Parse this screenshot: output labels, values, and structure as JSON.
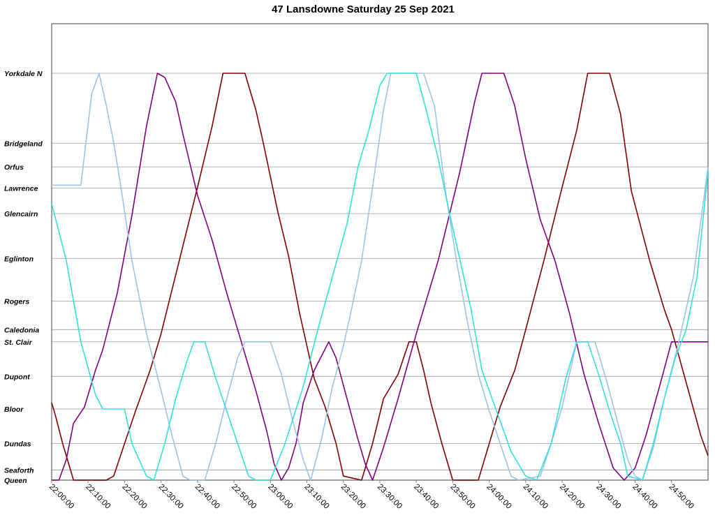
{
  "chart_data": {
    "type": "line",
    "title": "47 Lansdowne Saturday 25 Sep 2021",
    "x_ticks": [
      "22:00:00",
      "22:10:00",
      "22:20:00",
      "22:30:00",
      "22:40:00",
      "22:50:00",
      "23:00:00",
      "23:10:00",
      "23:20:00",
      "23:30:00",
      "23:40:00",
      "23:50:00",
      "24:00:00",
      "24:10:00",
      "24:20:00",
      "24:30:00",
      "24:40:00",
      "24:50:00"
    ],
    "xlim": [
      "22:00:00",
      "25:00:00"
    ],
    "stops": [
      {
        "name": "Yorkdale N",
        "dist": 0.0
      },
      {
        "name": "Bridgeland",
        "dist": 1.72
      },
      {
        "name": "Orfus",
        "dist": 2.3
      },
      {
        "name": "Lawrence",
        "dist": 2.82
      },
      {
        "name": "Glencairn",
        "dist": 3.45
      },
      {
        "name": "Eglinton",
        "dist": 4.55
      },
      {
        "name": "Rogers",
        "dist": 5.6
      },
      {
        "name": "Caledonia",
        "dist": 6.3
      },
      {
        "name": "St. Clair",
        "dist": 6.6
      },
      {
        "name": "Dupont",
        "dist": 7.45
      },
      {
        "name": "Bloor",
        "dist": 8.25
      },
      {
        "name": "Dundas",
        "dist": 9.1
      },
      {
        "name": "Seaforth",
        "dist": 9.75
      },
      {
        "name": "Queen",
        "dist": 10.0
      }
    ],
    "gridlines": true,
    "series": [
      {
        "color": "#800000",
        "points": [
          [
            "22:00:00",
            8.1
          ],
          [
            "22:01:00",
            8.4
          ],
          [
            "22:03:00",
            9.1
          ],
          [
            "22:06:00",
            10.0
          ],
          [
            "22:15:00",
            10.0
          ],
          [
            "22:17:00",
            9.9
          ],
          [
            "22:20:00",
            9.1
          ],
          [
            "22:23:00",
            8.3
          ],
          [
            "22:27:00",
            7.3
          ],
          [
            "22:30:00",
            6.4
          ],
          [
            "22:35:00",
            4.6
          ],
          [
            "22:40:00",
            2.8
          ],
          [
            "22:44:00",
            1.3
          ],
          [
            "22:47:00",
            0.0
          ],
          [
            "22:53:00",
            0.0
          ],
          [
            "22:56:00",
            0.9
          ],
          [
            "22:58:00",
            1.7
          ],
          [
            "23:02:00",
            3.4
          ],
          [
            "23:05:00",
            4.5
          ],
          [
            "23:08:00",
            5.9
          ],
          [
            "23:12:00",
            7.5
          ],
          [
            "23:15:00",
            8.2
          ],
          [
            "23:18:00",
            9.1
          ],
          [
            "23:20:00",
            9.9
          ],
          [
            "23:25:00",
            10.0
          ],
          [
            "23:28:00",
            9.1
          ],
          [
            "23:31:00",
            8.0
          ],
          [
            "23:35:00",
            7.4
          ],
          [
            "23:38:00",
            6.6
          ],
          [
            "23:40:00",
            6.6
          ],
          [
            "23:42:00",
            7.3
          ],
          [
            "23:44:00",
            8.1
          ],
          [
            "23:47:00",
            9.1
          ],
          [
            "23:50:00",
            10.0
          ],
          [
            "23:57:00",
            10.0
          ],
          [
            "24:00:00",
            9.1
          ],
          [
            "24:03:00",
            8.2
          ],
          [
            "24:07:00",
            7.3
          ],
          [
            "24:10:00",
            6.3
          ],
          [
            "24:15:00",
            4.6
          ],
          [
            "24:20:00",
            2.8
          ],
          [
            "24:24:00",
            1.4
          ],
          [
            "24:27:00",
            0.0
          ],
          [
            "24:33:00",
            0.0
          ],
          [
            "24:36:00",
            1.0
          ],
          [
            "24:39:00",
            2.9
          ],
          [
            "24:44:00",
            4.6
          ],
          [
            "24:48:00",
            5.8
          ],
          [
            "24:50:00",
            6.3
          ],
          [
            "24:54:00",
            7.6
          ],
          [
            "24:58:00",
            8.9
          ],
          [
            "25:00:00",
            9.4
          ]
        ]
      },
      {
        "color": "#800080",
        "points": [
          [
            "22:00:00",
            10.0
          ],
          [
            "22:02:00",
            10.0
          ],
          [
            "22:04:00",
            9.5
          ],
          [
            "22:06:00",
            8.6
          ],
          [
            "22:09:00",
            8.2
          ],
          [
            "22:12:00",
            7.3
          ],
          [
            "22:14:00",
            6.8
          ],
          [
            "22:18:00",
            5.4
          ],
          [
            "22:22:00",
            3.5
          ],
          [
            "22:26:00",
            1.3
          ],
          [
            "22:29:00",
            0.0
          ],
          [
            "22:31:00",
            0.1
          ],
          [
            "22:34:00",
            0.7
          ],
          [
            "22:36:00",
            1.5
          ],
          [
            "22:40:00",
            3.0
          ],
          [
            "22:44:00",
            4.1
          ],
          [
            "22:48:00",
            5.4
          ],
          [
            "22:52:00",
            6.6
          ],
          [
            "22:56:00",
            7.8
          ],
          [
            "22:59:00",
            8.8
          ],
          [
            "23:01:00",
            9.6
          ],
          [
            "23:03:00",
            10.0
          ],
          [
            "23:05:00",
            9.7
          ],
          [
            "23:07:00",
            9.1
          ],
          [
            "23:09:00",
            8.1
          ],
          [
            "23:12:00",
            7.3
          ],
          [
            "23:16:00",
            6.6
          ],
          [
            "23:18:00",
            7.0
          ],
          [
            "23:21:00",
            8.0
          ],
          [
            "23:24:00",
            9.0
          ],
          [
            "23:26:00",
            9.6
          ],
          [
            "23:28:00",
            10.0
          ],
          [
            "23:31:00",
            9.2
          ],
          [
            "23:35:00",
            8.0
          ],
          [
            "23:40:00",
            6.4
          ],
          [
            "23:46:00",
            4.6
          ],
          [
            "23:52:00",
            2.4
          ],
          [
            "23:56:00",
            0.7
          ],
          [
            "23:58:00",
            0.0
          ],
          [
            "24:04:00",
            0.0
          ],
          [
            "24:07:00",
            0.8
          ],
          [
            "24:10:00",
            2.1
          ],
          [
            "24:14:00",
            3.6
          ],
          [
            "24:18:00",
            4.6
          ],
          [
            "24:22:00",
            5.9
          ],
          [
            "24:26:00",
            7.4
          ],
          [
            "24:30:00",
            8.6
          ],
          [
            "24:34:00",
            9.7
          ],
          [
            "24:37:00",
            10.0
          ],
          [
            "24:40:00",
            9.7
          ],
          [
            "24:43:00",
            8.9
          ],
          [
            "24:47:00",
            7.6
          ],
          [
            "24:50:00",
            6.6
          ],
          [
            "24:57:00",
            6.6
          ],
          [
            "25:00:00",
            6.6
          ]
        ]
      },
      {
        "color": "#9dc3e6",
        "points": [
          [
            "22:00:00",
            2.75
          ],
          [
            "22:08:00",
            2.75
          ],
          [
            "22:09:00",
            2.0
          ],
          [
            "22:11:00",
            0.5
          ],
          [
            "22:13:00",
            0.0
          ],
          [
            "22:15:00",
            0.8
          ],
          [
            "22:17:00",
            1.7
          ],
          [
            "22:19:00",
            2.8
          ],
          [
            "22:22:00",
            4.6
          ],
          [
            "22:26:00",
            6.4
          ],
          [
            "22:30:00",
            7.8
          ],
          [
            "22:33:00",
            8.9
          ],
          [
            "22:36:00",
            9.9
          ],
          [
            "22:38:00",
            10.0
          ],
          [
            "22:42:00",
            10.0
          ],
          [
            "22:45:00",
            9.1
          ],
          [
            "22:48:00",
            8.0
          ],
          [
            "22:51:00",
            7.0
          ],
          [
            "22:53:00",
            6.6
          ],
          [
            "23:00:00",
            6.6
          ],
          [
            "23:03:00",
            7.4
          ],
          [
            "23:06:00",
            8.5
          ],
          [
            "23:09:00",
            9.5
          ],
          [
            "23:11:00",
            10.0
          ],
          [
            "23:14:00",
            9.0
          ],
          [
            "23:17:00",
            7.7
          ],
          [
            "23:20:00",
            6.7
          ],
          [
            "23:22:00",
            5.9
          ],
          [
            "23:25:00",
            4.6
          ],
          [
            "23:28:00",
            2.8
          ],
          [
            "23:31:00",
            0.9
          ],
          [
            "23:33:00",
            0.0
          ],
          [
            "23:42:00",
            0.0
          ],
          [
            "23:45:00",
            0.8
          ],
          [
            "23:48:00",
            2.9
          ],
          [
            "23:51:00",
            4.6
          ],
          [
            "23:54:00",
            6.1
          ],
          [
            "23:57:00",
            7.4
          ],
          [
            "24:00:00",
            8.3
          ],
          [
            "24:03:00",
            9.1
          ],
          [
            "24:06:00",
            9.9
          ],
          [
            "24:08:00",
            10.0
          ],
          [
            "24:14:00",
            9.9
          ],
          [
            "24:17:00",
            9.1
          ],
          [
            "24:20:00",
            8.2
          ],
          [
            "24:24:00",
            6.6
          ],
          [
            "24:29:00",
            6.6
          ],
          [
            "24:32:00",
            7.5
          ],
          [
            "24:35:00",
            8.5
          ],
          [
            "24:38:00",
            9.5
          ],
          [
            "24:40:00",
            9.9
          ],
          [
            "24:42:00",
            10.0
          ],
          [
            "24:45:00",
            9.2
          ],
          [
            "24:48:00",
            8.0
          ],
          [
            "24:52:00",
            6.6
          ],
          [
            "24:56:00",
            5.0
          ],
          [
            "25:00:00",
            2.3
          ]
        ]
      },
      {
        "color": "#33e0e0",
        "points": [
          [
            "22:00:00",
            3.2
          ],
          [
            "22:04:00",
            4.6
          ],
          [
            "22:08:00",
            6.6
          ],
          [
            "22:12:00",
            7.9
          ],
          [
            "22:14:00",
            8.25
          ],
          [
            "22:20:00",
            8.25
          ],
          [
            "22:22:00",
            9.1
          ],
          [
            "22:26:00",
            9.9
          ],
          [
            "22:28:00",
            10.0
          ],
          [
            "22:31:00",
            9.1
          ],
          [
            "22:34:00",
            8.0
          ],
          [
            "22:37:00",
            7.1
          ],
          [
            "22:39:00",
            6.6
          ],
          [
            "22:42:00",
            6.6
          ],
          [
            "22:45:00",
            7.5
          ],
          [
            "22:48:00",
            8.3
          ],
          [
            "22:51:00",
            9.1
          ],
          [
            "22:54:00",
            9.9
          ],
          [
            "22:56:00",
            10.0
          ],
          [
            "23:00:00",
            10.0
          ],
          [
            "23:04:00",
            9.1
          ],
          [
            "23:09:00",
            7.7
          ],
          [
            "23:13:00",
            6.3
          ],
          [
            "23:17:00",
            5.0
          ],
          [
            "23:21:00",
            3.7
          ],
          [
            "23:24:00",
            2.3
          ],
          [
            "23:27:00",
            1.4
          ],
          [
            "23:30:00",
            0.3
          ],
          [
            "23:32:00",
            0.0
          ],
          [
            "23:40:00",
            0.0
          ],
          [
            "23:43:00",
            1.0
          ],
          [
            "23:46:00",
            2.1
          ],
          [
            "23:49:00",
            3.4
          ],
          [
            "23:52:00",
            4.6
          ],
          [
            "23:55:00",
            5.8
          ],
          [
            "23:58:00",
            7.3
          ],
          [
            "24:02:00",
            8.3
          ],
          [
            "24:06:00",
            9.3
          ],
          [
            "24:10:00",
            9.9
          ],
          [
            "24:13:00",
            10.0
          ],
          [
            "24:17:00",
            9.1
          ],
          [
            "24:19:00",
            8.3
          ],
          [
            "24:21:00",
            7.5
          ],
          [
            "24:24:00",
            6.6
          ],
          [
            "24:27:00",
            6.6
          ],
          [
            "24:30:00",
            7.4
          ],
          [
            "24:33:00",
            8.3
          ],
          [
            "24:36:00",
            9.1
          ],
          [
            "24:38:00",
            9.9
          ],
          [
            "24:42:00",
            10.0
          ],
          [
            "24:45:00",
            9.1
          ],
          [
            "24:48:00",
            8.0
          ],
          [
            "24:51:00",
            7.0
          ],
          [
            "24:54:00",
            6.3
          ],
          [
            "24:57:00",
            5.0
          ],
          [
            "25:00:00",
            2.4
          ]
        ]
      }
    ]
  }
}
